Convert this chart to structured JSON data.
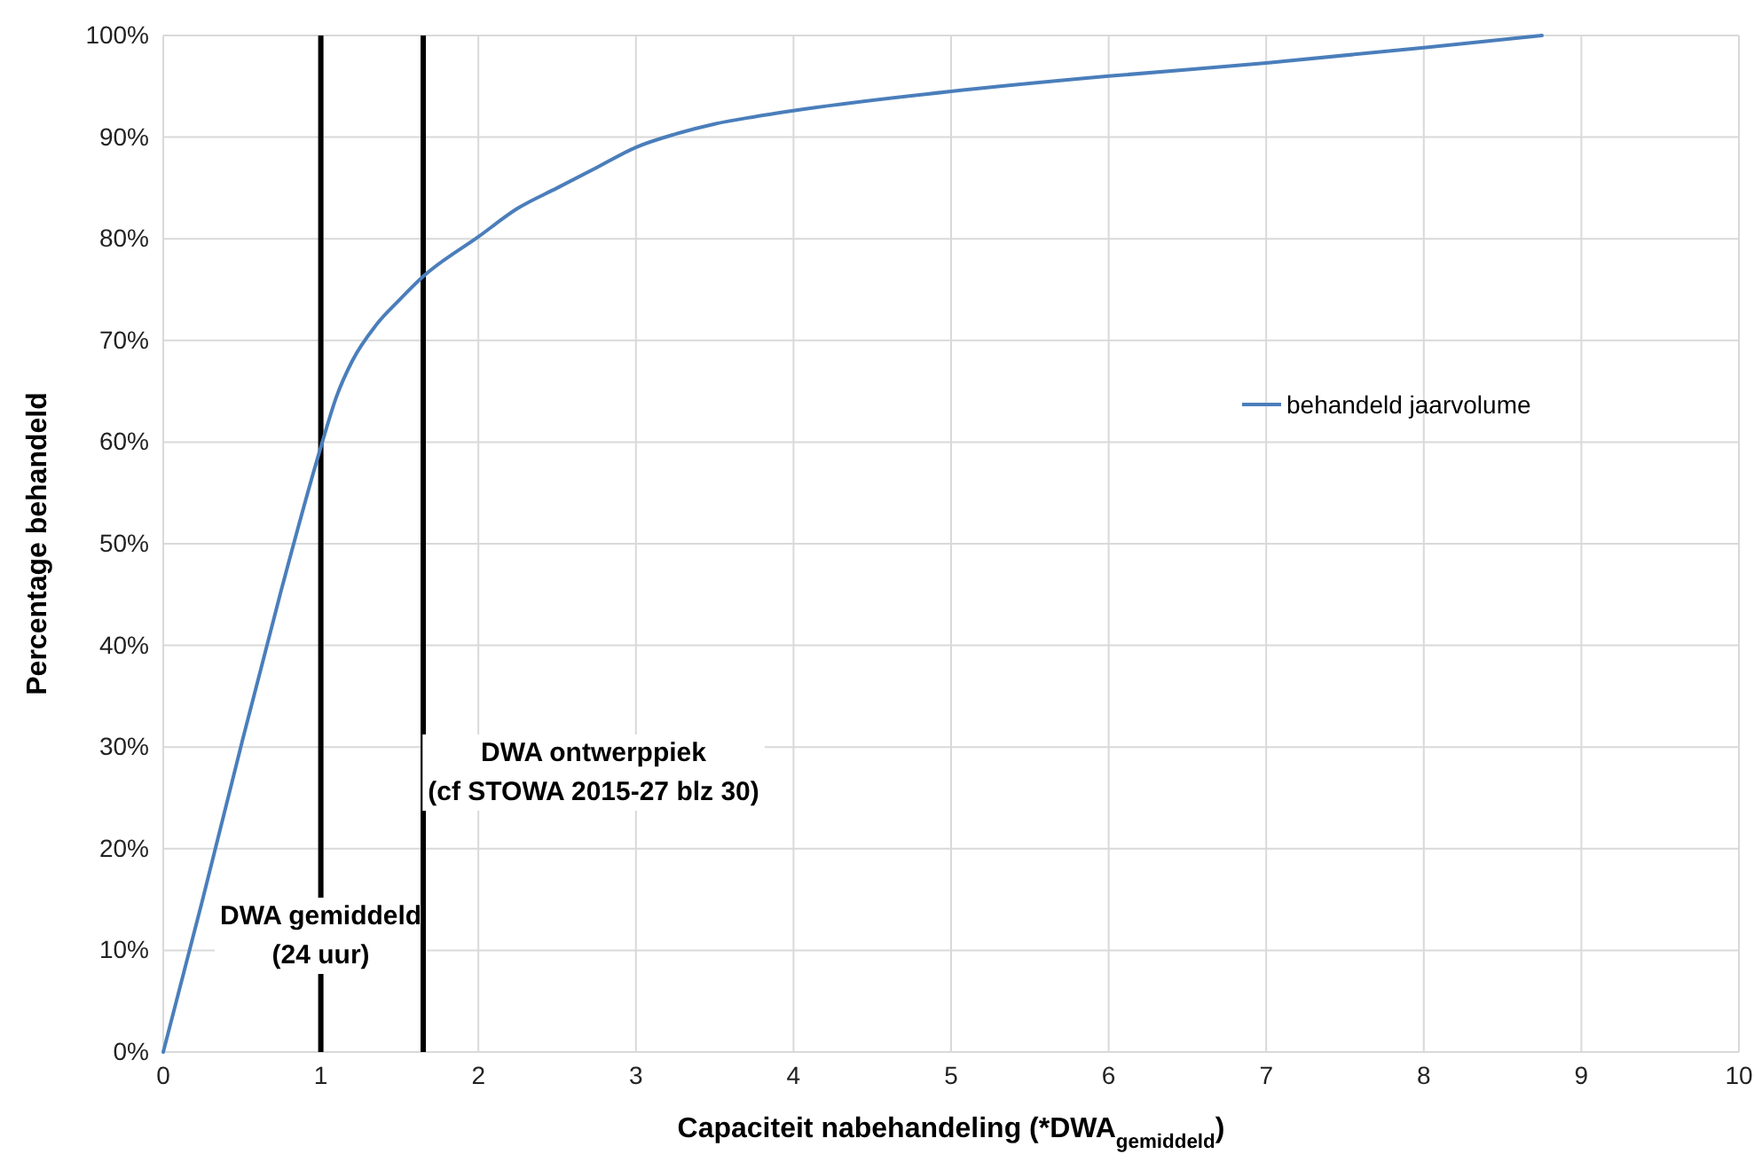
{
  "chart_data": {
    "type": "line",
    "xlabel": "Capaciteit nabehandeling (*DWA$_{gemiddeld}$)",
    "ylabel": "Percentage behandeld",
    "x": [
      0,
      0.25,
      0.5,
      0.75,
      1,
      1.1,
      1.2,
      1.35,
      1.5,
      1.65,
      2,
      2.25,
      2.5,
      2.75,
      3,
      3.25,
      3.5,
      3.75,
      4,
      5,
      6,
      7,
      8,
      8.75
    ],
    "series": [
      {
        "name": "behandeld jaarvolume",
        "color": "#4a7ebb",
        "values": [
          0,
          15,
          30.5,
          45.5,
          59.5,
          64.5,
          68,
          71.5,
          74,
          76.3,
          80.2,
          83,
          85,
          87,
          89,
          90.3,
          91.3,
          92,
          92.6,
          94.5,
          96,
          97.3,
          98.8,
          100
        ]
      }
    ],
    "xlim": [
      0,
      10
    ],
    "xticks": [
      0,
      1,
      2,
      3,
      4,
      5,
      6,
      7,
      8,
      9,
      10
    ],
    "ylim": [
      0,
      100
    ],
    "yticks": [
      {
        "value": 0,
        "label": "0%"
      },
      {
        "value": 10,
        "label": "10%"
      },
      {
        "value": 20,
        "label": "20%"
      },
      {
        "value": 30,
        "label": "30%"
      },
      {
        "value": 40,
        "label": "40%"
      },
      {
        "value": 50,
        "label": "50%"
      },
      {
        "value": 60,
        "label": "60%"
      },
      {
        "value": 70,
        "label": "70%"
      },
      {
        "value": 80,
        "label": "80%"
      },
      {
        "value": 90,
        "label": "90%"
      },
      {
        "value": 100,
        "label": "100%"
      }
    ],
    "ref_lines": [
      {
        "axis": "x",
        "value": 1,
        "label": "DWA gemiddeld\n(24 uur)",
        "color": "#000000"
      },
      {
        "axis": "x",
        "value": 1.65,
        "label": "DWA ontwerppiek\n(cf STOWA 2015-27 blz 30)",
        "color": "#000000"
      }
    ],
    "grid": true,
    "legend": "right",
    "marker": "none",
    "line_style": "solid"
  }
}
